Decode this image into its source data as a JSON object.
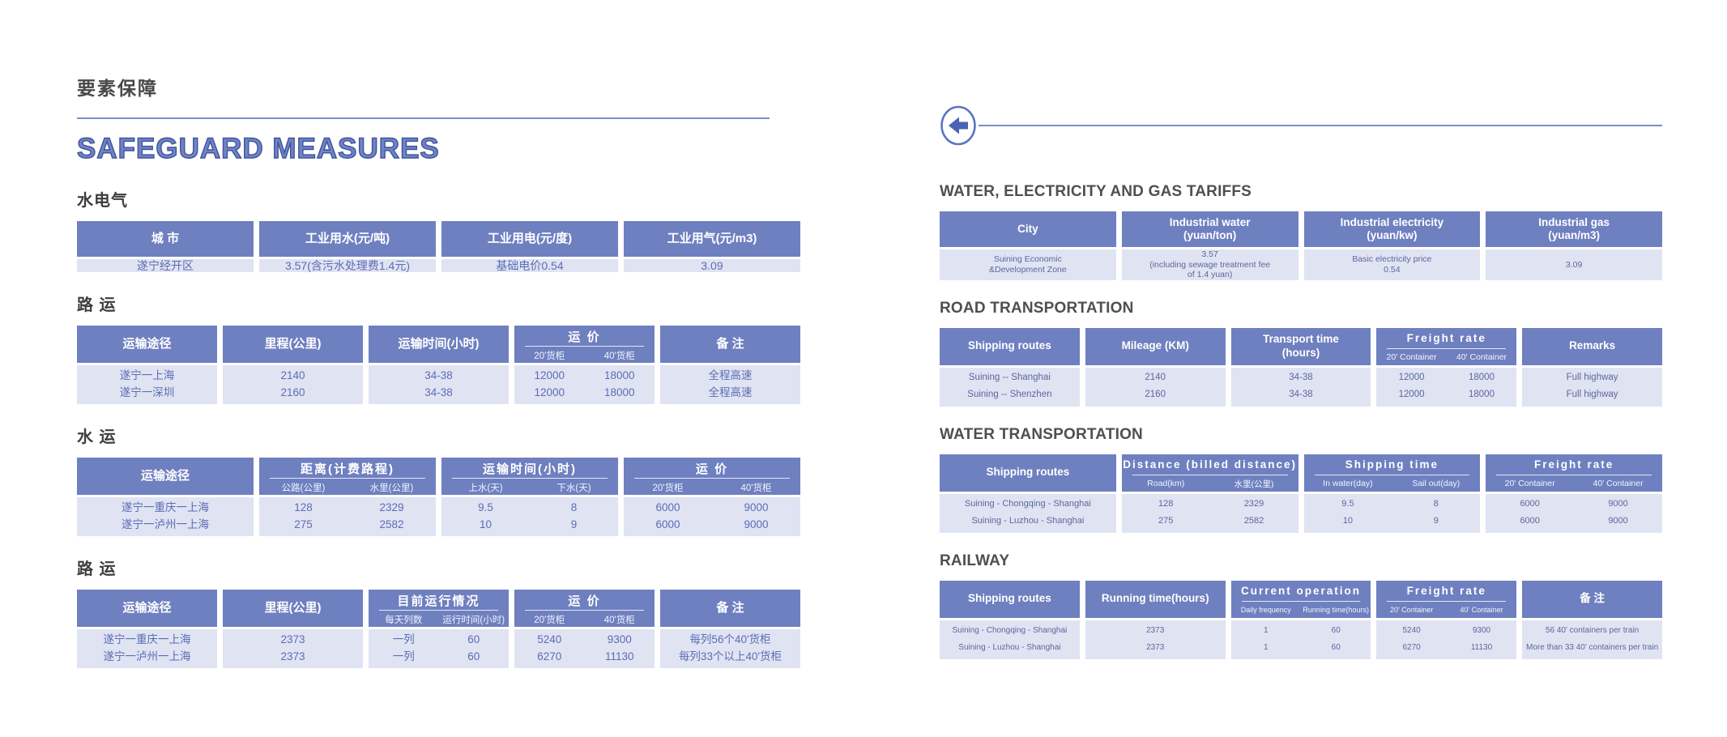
{
  "header": {
    "zh_title": "要素保障",
    "en_title": "SAFEGUARD MEASURES"
  },
  "icons": {
    "back": "left-arrow-circle-icon"
  },
  "colors": {
    "table_header_bg": "#6f80c0",
    "table_row_bg": "#e0e3f2",
    "accent_blue": "#6d84c6",
    "divider_blue": "#7b8fce",
    "heading_gray": "#454545",
    "cell_text_zh": "#5b6db6",
    "cell_text_en": "#5a689c"
  },
  "left": {
    "sections": [
      {
        "heading": "水电气",
        "table": {
          "columns": [
            {
              "header": "城  市",
              "cells": [
                "遂宁经开区"
              ]
            },
            {
              "header": "工业用水(元/吨)",
              "cells": [
                "3.57(含污水处理费1.4元)"
              ]
            },
            {
              "header": "工业用电(元/度)",
              "cells": [
                "基础电价0.54"
              ]
            },
            {
              "header": "工业用气(元/m3)",
              "cells": [
                "3.09"
              ]
            }
          ]
        }
      },
      {
        "heading": "路  运",
        "table": {
          "columns": [
            {
              "header": "运输途径",
              "cells": [
                "遂宁一上海",
                "遂宁一深圳"
              ]
            },
            {
              "header": "里程(公里)",
              "cells": [
                "2140",
                "2160"
              ]
            },
            {
              "header": "运输时间(小时)",
              "cells": [
                "34-38",
                "34-38"
              ]
            },
            {
              "header": "运  价",
              "subs": [
                "20'货柜",
                "40'货柜"
              ],
              "cells": [
                [
                  "12000",
                  "18000"
                ],
                [
                  "12000",
                  "18000"
                ]
              ]
            },
            {
              "header": "备  注",
              "cells": [
                "全程高速",
                "全程高速"
              ]
            }
          ]
        }
      },
      {
        "heading": "水  运",
        "table": {
          "columns": [
            {
              "header": "运输途径",
              "cells": [
                "遂宁一重庆一上海",
                "遂宁一泸州一上海"
              ]
            },
            {
              "header": "距离(计费路程)",
              "subs": [
                "公路(公里)",
                "水里(公里)"
              ],
              "cells": [
                [
                  "128",
                  "2329"
                ],
                [
                  "275",
                  "2582"
                ]
              ]
            },
            {
              "header": "运输时间(小时)",
              "subs": [
                "上水(天)",
                "下水(天)"
              ],
              "cells": [
                [
                  "9.5",
                  "8"
                ],
                [
                  "10",
                  "9"
                ]
              ]
            },
            {
              "header": "运  价",
              "subs": [
                "20'货柜",
                "40'货柜"
              ],
              "cells": [
                [
                  "6000",
                  "9000"
                ],
                [
                  "6000",
                  "9000"
                ]
              ]
            }
          ]
        }
      },
      {
        "heading": "路  运",
        "table": {
          "columns": [
            {
              "header": "运输途径",
              "cells": [
                "遂宁一重庆一上海",
                "遂宁一泸州一上海"
              ]
            },
            {
              "header": "里程(公里)",
              "cells": [
                "2373",
                "2373"
              ]
            },
            {
              "header": "目前运行情况",
              "subs": [
                "每天列数",
                "运行时间(小时)"
              ],
              "cells": [
                [
                  "一列",
                  "60"
                ],
                [
                  "一列",
                  "60"
                ]
              ]
            },
            {
              "header": "运  价",
              "subs": [
                "20'货柜",
                "40'货柜"
              ],
              "cells": [
                [
                  "5240",
                  "9300"
                ],
                [
                  "6270",
                  "11130"
                ]
              ]
            },
            {
              "header": "备  注",
              "cells": [
                "每列56个40'货柜",
                "每列33个以上40'货柜"
              ]
            }
          ]
        }
      }
    ]
  },
  "right": {
    "sections": [
      {
        "heading": "WATER, ELECTRICITY AND GAS TARIFFS",
        "table": {
          "columns": [
            {
              "header": "City",
              "cells": [
                "Suining Economic\n&Development Zone"
              ]
            },
            {
              "header": "Industrial water\n(yuan/ton)",
              "cells": [
                "3.57\n(including sewage treatment fee\nof 1.4 yuan)"
              ]
            },
            {
              "header": "Industrial electricity\n(yuan/kw)",
              "cells": [
                "Basic electricity price\n0.54"
              ]
            },
            {
              "header": "Industrial gas\n(yuan/m3)",
              "cells": [
                "3.09"
              ]
            }
          ]
        }
      },
      {
        "heading": "ROAD TRANSPORTATION",
        "table": {
          "columns": [
            {
              "header": "Shipping routes",
              "cells": [
                "Suining -- Shanghai",
                "Suining -- Shenzhen"
              ]
            },
            {
              "header": "Mileage (KM)",
              "cells": [
                "2140",
                "2160"
              ]
            },
            {
              "header": "Transport time\n(hours)",
              "cells": [
                "34-38",
                "34-38"
              ]
            },
            {
              "header": "Freight rate",
              "subs": [
                "20' Container",
                "40' Container"
              ],
              "cells": [
                [
                  "12000",
                  "18000"
                ],
                [
                  "12000",
                  "18000"
                ]
              ]
            },
            {
              "header": "Remarks",
              "cells": [
                "Full highway",
                "Full highway"
              ]
            }
          ]
        }
      },
      {
        "heading": "WATER TRANSPORTATION",
        "table": {
          "columns": [
            {
              "header": "Shipping routes",
              "cells": [
                "Suining - Chongqing - Shanghai",
                "Suining - Luzhou - Shanghai"
              ]
            },
            {
              "header": "Distance (billed distance)",
              "subs": [
                "Road(km)",
                "水里(公里)"
              ],
              "cells": [
                [
                  "128",
                  "2329"
                ],
                [
                  "275",
                  "2582"
                ]
              ]
            },
            {
              "header": "Shipping time",
              "subs": [
                "In water(day)",
                "Sail out(day)"
              ],
              "cells": [
                [
                  "9.5",
                  "8"
                ],
                [
                  "10",
                  "9"
                ]
              ]
            },
            {
              "header": "Freight rate",
              "subs": [
                "20' Container",
                "40' Container"
              ],
              "cells": [
                [
                  "6000",
                  "9000"
                ],
                [
                  "6000",
                  "9000"
                ]
              ]
            }
          ]
        }
      },
      {
        "heading": "RAILWAY",
        "table": {
          "columns": [
            {
              "header": "Shipping routes",
              "cells": [
                "Suining - Chongqing - Shanghai",
                "Suining - Luzhou - Shanghai"
              ]
            },
            {
              "header": "Running time(hours)",
              "cells": [
                "2373",
                "2373"
              ]
            },
            {
              "header": "Current operation",
              "subs": [
                "Daily frequency",
                "Running time(hours)"
              ],
              "cells": [
                [
                  "1",
                  "60"
                ],
                [
                  "1",
                  "60"
                ]
              ]
            },
            {
              "header": "Freight rate",
              "subs": [
                "20' Container",
                "40' Container"
              ],
              "cells": [
                [
                  "5240",
                  "9300"
                ],
                [
                  "6270",
                  "11130"
                ]
              ]
            },
            {
              "header": "备  注",
              "cells": [
                "56 40' containers per train",
                "More than 33 40' containers per train"
              ]
            }
          ]
        }
      }
    ]
  }
}
